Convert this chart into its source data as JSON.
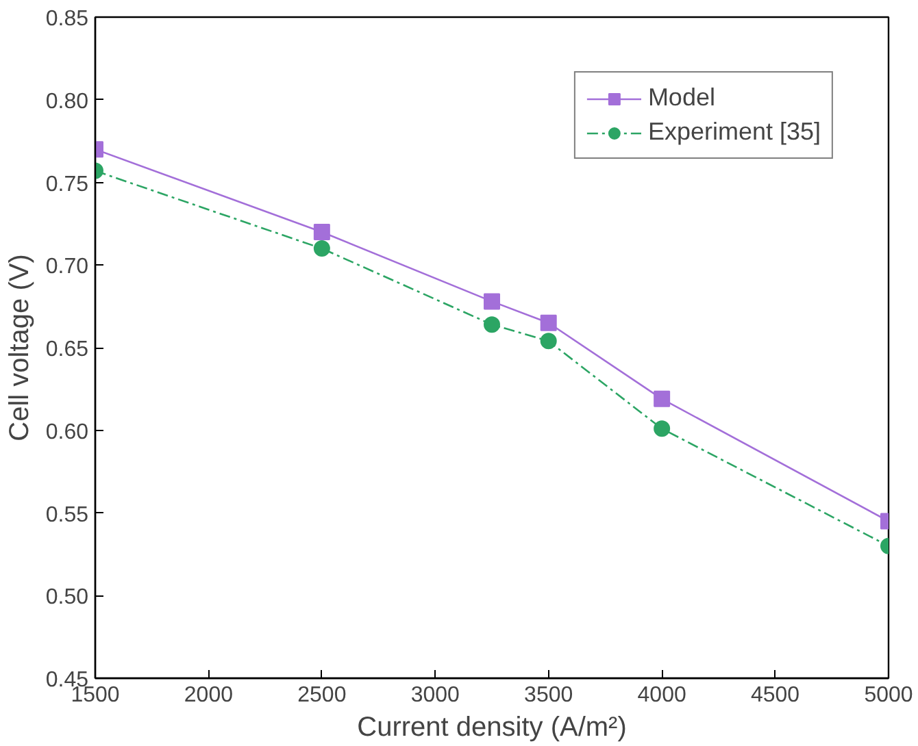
{
  "chart_data": {
    "type": "line",
    "xlabel": "Current density (A/m²)",
    "ylabel": "Cell voltage (V)",
    "x": [
      1500,
      2500,
      3250,
      3500,
      4000,
      5000
    ],
    "series": [
      {
        "name": "Model",
        "color": "#a36fd9",
        "marker": "square",
        "line_style": "solid",
        "values": [
          0.77,
          0.72,
          0.678,
          0.665,
          0.619,
          0.545
        ]
      },
      {
        "name": "Experiment [35]",
        "color": "#2ca564",
        "marker": "circle",
        "line_style": "dashed",
        "values": [
          0.757,
          0.71,
          0.664,
          0.654,
          0.601,
          0.53
        ]
      }
    ],
    "xlim": [
      1500,
      5000
    ],
    "xticks": [
      1500,
      2000,
      2500,
      3000,
      3500,
      4000,
      4500,
      5000
    ],
    "ylim": [
      0.45,
      0.85
    ],
    "yticks": [
      {
        "value": 0.45,
        "label": "0.45"
      },
      {
        "value": 0.5,
        "label": "0.50"
      },
      {
        "value": 0.55,
        "label": "0.55"
      },
      {
        "value": 0.6,
        "label": "0.60"
      },
      {
        "value": 0.65,
        "label": "0.65"
      },
      {
        "value": 0.7,
        "label": "0.70"
      },
      {
        "value": 0.75,
        "label": "0.75"
      },
      {
        "value": 0.8,
        "label": "0.80"
      },
      {
        "value": 0.85,
        "label": "0.85"
      }
    ],
    "grid": false,
    "legend": "top right"
  }
}
